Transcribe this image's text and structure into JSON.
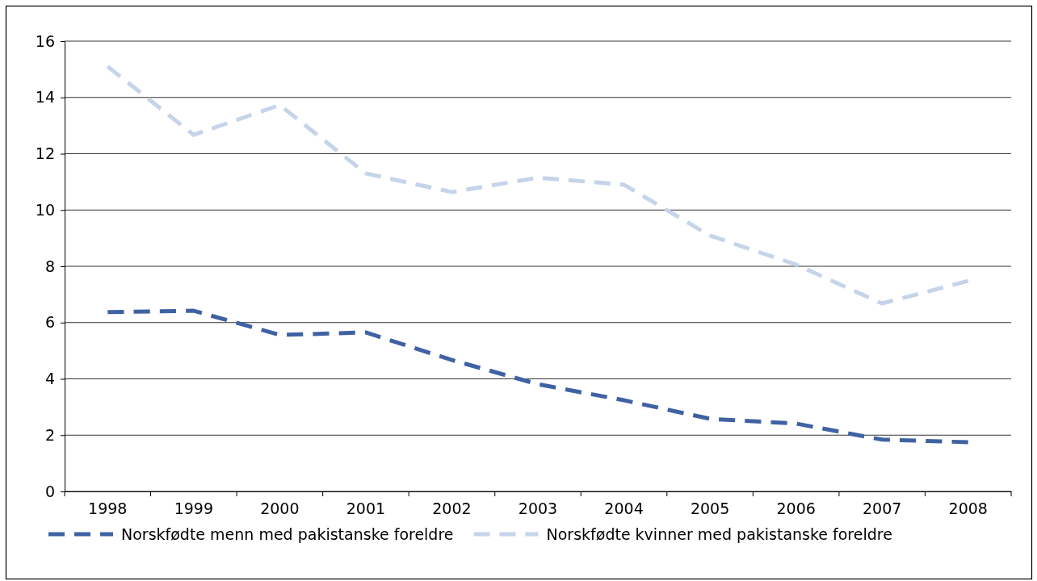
{
  "chart_data": {
    "type": "line",
    "categories": [
      "1998",
      "1999",
      "2000",
      "2001",
      "2002",
      "2003",
      "2004",
      "2005",
      "2006",
      "2007",
      "2008"
    ],
    "series": [
      {
        "name": "Norskfødte menn med pakistanske foreldre",
        "color": "#3f62a3",
        "values": [
          6.37,
          6.42,
          5.56,
          5.65,
          4.67,
          3.81,
          3.24,
          2.58,
          2.41,
          1.84,
          1.75
        ]
      },
      {
        "name": "Norskfødte kvinner med pakistanske foreldre",
        "color": "#c6d4ea",
        "values": [
          15.1,
          12.67,
          13.73,
          11.3,
          10.64,
          11.15,
          10.9,
          9.09,
          8.06,
          6.68,
          7.48
        ]
      }
    ],
    "ylim": [
      0,
      16
    ],
    "yticks": [
      0,
      2,
      4,
      6,
      8,
      10,
      12,
      14,
      16
    ],
    "grid": "y",
    "legend": "bottom",
    "line_style": "dashed",
    "marker": "none"
  }
}
